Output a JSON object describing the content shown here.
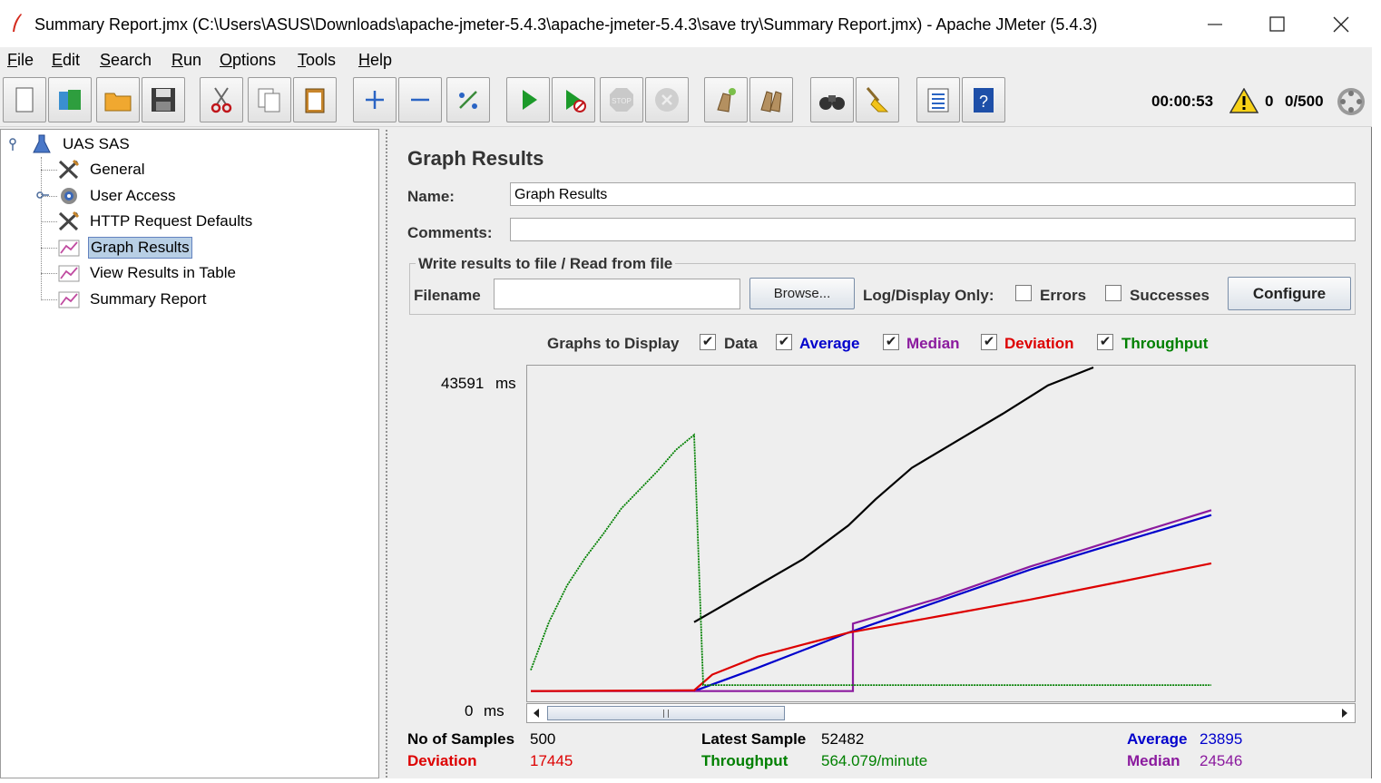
{
  "window": {
    "title": "Summary Report.jmx (C:\\Users\\ASUS\\Downloads\\apache-jmeter-5.4.3\\apache-jmeter-5.4.3\\save try\\Summary Report.jmx) - Apache JMeter (5.4.3)"
  },
  "menu": [
    {
      "first": "F",
      "rest": "ile"
    },
    {
      "first": "E",
      "rest": "dit"
    },
    {
      "first": "S",
      "rest": "earch"
    },
    {
      "first": "R",
      "rest": "un"
    },
    {
      "first": "O",
      "rest": "ptions"
    },
    {
      "first": "T",
      "rest": "ools"
    },
    {
      "first": "H",
      "rest": "elp"
    }
  ],
  "status": {
    "elapsed": "00:00:53",
    "warnings": "0",
    "threads": "0/500"
  },
  "tree": {
    "root": "UAS SAS",
    "items": [
      "General",
      "User Access",
      "HTTP Request Defaults",
      "Graph Results",
      "View Results in Table",
      "Summary Report"
    ],
    "selected": "Graph Results"
  },
  "panel": {
    "title": "Graph Results",
    "name_label": "Name:",
    "name_value": "Graph Results",
    "comments_label": "Comments:",
    "comments_value": "",
    "file_group_title": "Write results to file / Read from file",
    "filename_label": "Filename",
    "filename_value": "",
    "browse_label": "Browse...",
    "log_only_label": "Log/Display Only:",
    "errors_label": "Errors",
    "successes_label": "Successes",
    "configure_label": "Configure",
    "graphs_label": "Graphs to Display",
    "graphs": [
      {
        "label": "Data",
        "checked": true,
        "color": "#000000"
      },
      {
        "label": "Average",
        "checked": true,
        "color": "#0000cc"
      },
      {
        "label": "Median",
        "checked": true,
        "color": "#8b1a9e"
      },
      {
        "label": "Deviation",
        "checked": true,
        "color": "#dd0000"
      },
      {
        "label": "Throughput",
        "checked": true,
        "color": "#008000"
      }
    ],
    "y_max_label": "43591",
    "y_min_label": "0",
    "y_unit": "ms"
  },
  "stats": {
    "samples_label": "No of Samples",
    "samples_value": "500",
    "latest_label": "Latest Sample",
    "latest_value": "52482",
    "average_label": "Average",
    "average_value": "23895",
    "deviation_label": "Deviation",
    "deviation_value": "17445",
    "throughput_label": "Throughput",
    "throughput_value": "564.079/minute",
    "median_label": "Median",
    "median_value": "24546"
  },
  "chart_data": {
    "type": "line",
    "ylim": [
      0,
      43591
    ],
    "series": [
      {
        "name": "Data",
        "color": "#000000",
        "x": [
          180,
          200,
          250,
          300,
          350,
          380,
          420,
          470,
          520,
          570,
          620
        ],
        "y": [
          9600,
          11000,
          14500,
          18000,
          22500,
          26000,
          30200,
          33800,
          37400,
          41200,
          43591
        ]
      },
      {
        "name": "Average",
        "color": "#0000cc",
        "x": [
          180,
          250,
          350,
          450,
          550,
          620,
          750
        ],
        "y": [
          400,
          3500,
          8200,
          12400,
          16600,
          19200,
          23895
        ]
      },
      {
        "name": "Median",
        "color": "#8b1a9e",
        "x": [
          0,
          355,
          355,
          450,
          550,
          650,
          750
        ],
        "y": [
          400,
          400,
          9400,
          12800,
          17000,
          20800,
          24546
        ]
      },
      {
        "name": "Deviation",
        "color": "#dd0000",
        "x": [
          0,
          180,
          200,
          250,
          350,
          450,
          550,
          650,
          750
        ],
        "y": [
          400,
          500,
          2600,
          5000,
          8200,
          10400,
          12600,
          15000,
          17445
        ]
      },
      {
        "name": "Throughput",
        "color": "#008000",
        "x": [
          0,
          20,
          40,
          60,
          80,
          100,
          120,
          140,
          160,
          180,
          190,
          750
        ],
        "y": [
          3200,
          9600,
          14500,
          18200,
          21400,
          24800,
          27300,
          29800,
          32600,
          34600,
          1200,
          1200
        ]
      }
    ]
  }
}
